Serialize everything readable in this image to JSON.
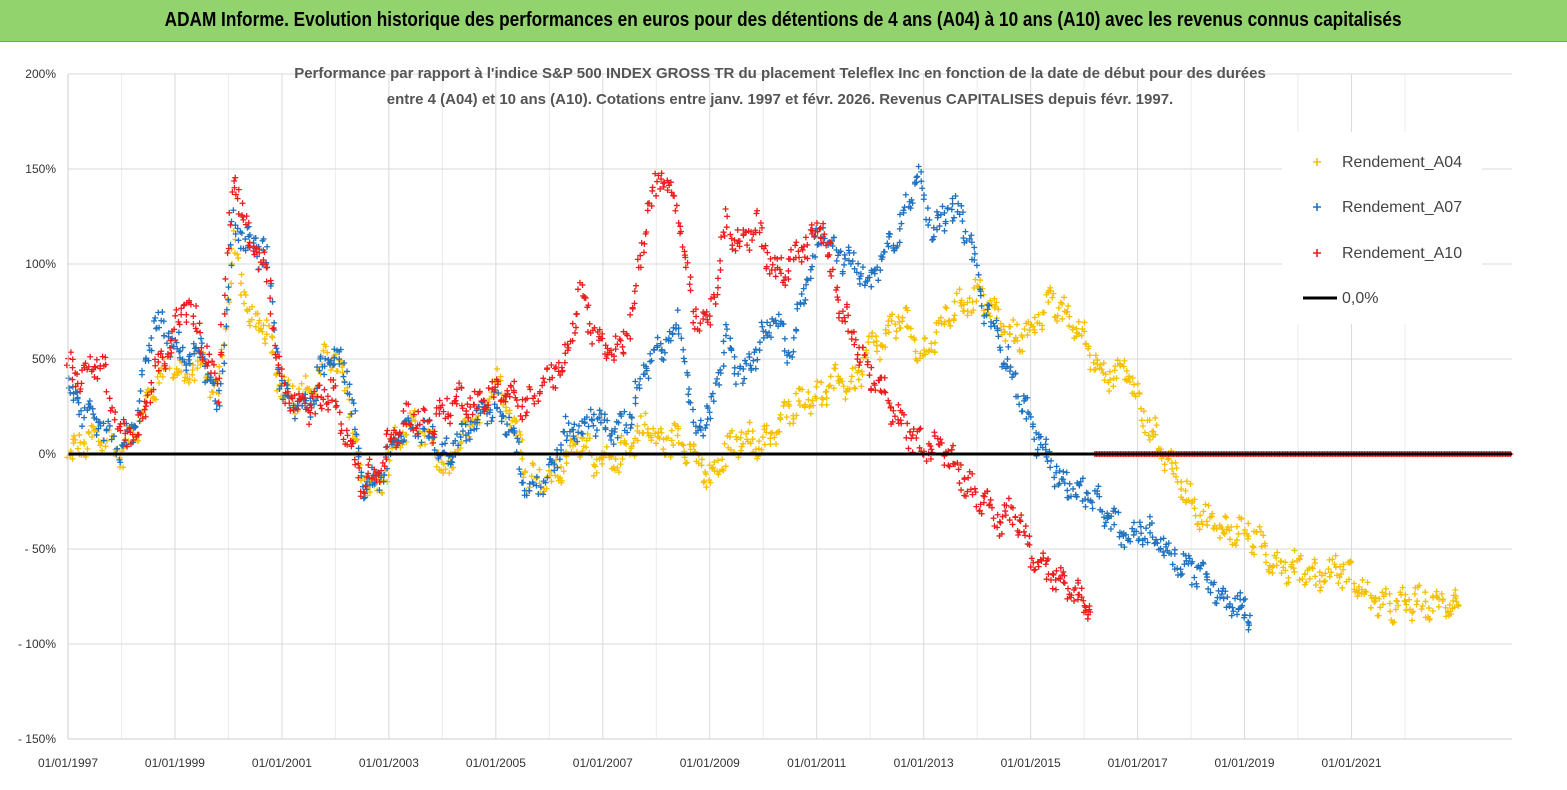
{
  "banner": {
    "title": "ADAM Informe. Evolution historique des performances en euros pour des détentions de 4 ans (A04) à 10 ans (A10) avec les revenus connus capitalisés"
  },
  "chart_data": {
    "type": "scatter",
    "title_lines": [
      "Performance par rapport à l'indice S&P 500 INDEX GROSS TR  du placement Teleflex Inc en fonction de la date de début pour des durées",
      "entre 4 (A04) et 10 ans (A10). Cotations entre janv. 1997 et févr. 2026. Revenus CAPITALISES depuis févr. 1997."
    ],
    "ylim": [
      -150,
      200
    ],
    "yticks": [
      200,
      150,
      100,
      50,
      0,
      -50,
      -100,
      -150
    ],
    "ytick_labels": [
      "200%",
      "150%",
      "100%",
      "50%",
      "0%",
      "- 50%",
      "- 100%",
      "- 150%"
    ],
    "xlim": [
      1997.0,
      2024.0
    ],
    "xticks": [
      1997,
      1999,
      2001,
      2003,
      2005,
      2007,
      2009,
      2011,
      2013,
      2015,
      2017,
      2019,
      2021
    ],
    "xtick_labels": [
      "01/01/1997",
      "01/01/1999",
      "01/01/2001",
      "01/01/2003",
      "01/01/2005",
      "01/01/2007",
      "01/01/2009",
      "01/01/2011",
      "01/01/2013",
      "01/01/2015",
      "01/01/2017",
      "01/01/2019",
      "01/01/2021"
    ],
    "legend": {
      "position": "right",
      "entries": [
        {
          "label": "Rendement_A04",
          "color": "#f5c000",
          "marker": "plus"
        },
        {
          "label": "Rendement_A07",
          "color": "#1f72c0",
          "marker": "plus"
        },
        {
          "label": "Rendement_A10",
          "color": "#ee1c1c",
          "marker": "plus"
        },
        {
          "label": "0,0%",
          "color": "#000000",
          "marker": "line"
        }
      ]
    },
    "series": [
      {
        "name": "Rendement_A04",
        "color": "#f5c000",
        "x": [
          1997.0,
          1997.3,
          1997.6,
          1998.0,
          1998.3,
          1998.6,
          1998.9,
          1999.2,
          1999.5,
          1999.8,
          2000.1,
          2000.4,
          2000.7,
          2001.0,
          2001.3,
          2001.6,
          2001.9,
          2002.2,
          2002.5,
          2002.8,
          2003.1,
          2003.4,
          2003.8,
          2004.1,
          2004.4,
          2004.7,
          2005.0,
          2005.3,
          2005.6,
          2006.0,
          2006.3,
          2006.6,
          2006.9,
          2007.2,
          2007.5,
          2007.8,
          2008.1,
          2008.4,
          2008.7,
          2009.0,
          2009.3,
          2009.6,
          2009.9,
          2010.2,
          2010.5,
          2010.8,
          2011.1,
          2011.4,
          2011.7,
          2012.0,
          2012.3,
          2012.6,
          2012.9,
          2013.2,
          2013.5,
          2013.8,
          2014.1,
          2014.4,
          2014.7,
          2015.0,
          2015.3,
          2015.6,
          2015.9,
          2016.2,
          2016.5,
          2016.8,
          2017.1,
          2017.4,
          2017.7,
          2018.0,
          2018.3,
          2018.6,
          2018.9,
          2019.2,
          2019.5,
          2019.8,
          2020.1,
          2020.4,
          2020.7,
          2021.0,
          2021.3,
          2021.6,
          2021.9,
          2022.2,
          2022.5,
          2022.8,
          2023.0
        ],
        "y": [
          0,
          5,
          10,
          0,
          15,
          35,
          50,
          40,
          48,
          30,
          110,
          70,
          65,
          35,
          30,
          35,
          55,
          35,
          -10,
          -20,
          5,
          15,
          5,
          -10,
          10,
          20,
          40,
          20,
          -10,
          -15,
          -5,
          10,
          -5,
          -5,
          5,
          15,
          5,
          10,
          0,
          -15,
          0,
          10,
          5,
          10,
          25,
          30,
          30,
          40,
          35,
          55,
          60,
          75,
          50,
          60,
          75,
          80,
          85,
          70,
          60,
          65,
          80,
          75,
          65,
          50,
          40,
          45,
          20,
          5,
          -10,
          -25,
          -35,
          -40,
          -40,
          -45,
          -55,
          -60,
          -60,
          -65,
          -60,
          -65,
          -75,
          -80,
          -80,
          -78,
          -80,
          -78,
          -80
        ]
      },
      {
        "name": "Rendement_A07",
        "color": "#1f72c0",
        "x": [
          1997.0,
          1997.3,
          1997.6,
          1998.0,
          1998.3,
          1998.6,
          1998.9,
          1999.2,
          1999.5,
          1999.8,
          2000.1,
          2000.4,
          2000.7,
          2001.0,
          2001.3,
          2001.6,
          2001.9,
          2002.2,
          2002.5,
          2002.8,
          2003.1,
          2003.4,
          2003.8,
          2004.1,
          2004.4,
          2004.7,
          2005.0,
          2005.3,
          2005.6,
          2006.0,
          2006.3,
          2006.6,
          2006.9,
          2007.2,
          2007.5,
          2007.8,
          2008.1,
          2008.4,
          2008.7,
          2009.0,
          2009.3,
          2009.6,
          2009.9,
          2010.2,
          2010.5,
          2010.8,
          2011.1,
          2011.4,
          2011.7,
          2012.0,
          2012.3,
          2012.6,
          2012.9,
          2013.2,
          2013.5,
          2013.8,
          2014.1,
          2014.4,
          2014.7,
          2015.0,
          2015.3,
          2015.6,
          2015.9,
          2016.2,
          2016.5,
          2016.8,
          2017.1,
          2017.4,
          2017.7,
          2018.0,
          2018.3,
          2018.6,
          2018.9,
          2019.1
        ],
        "y": [
          35,
          20,
          15,
          0,
          20,
          70,
          60,
          50,
          55,
          20,
          120,
          110,
          105,
          30,
          25,
          30,
          55,
          45,
          -15,
          -15,
          5,
          15,
          10,
          0,
          10,
          20,
          25,
          15,
          -20,
          -10,
          10,
          15,
          20,
          10,
          20,
          45,
          55,
          70,
          15,
          20,
          60,
          40,
          55,
          70,
          55,
          90,
          120,
          105,
          100,
          90,
          110,
          120,
          150,
          115,
          130,
          120,
          80,
          60,
          40,
          15,
          0,
          -15,
          -20,
          -25,
          -35,
          -45,
          -40,
          -45,
          -55,
          -60,
          -65,
          -75,
          -80,
          -85
        ]
      },
      {
        "name": "Rendement_A10",
        "color": "#ee1c1c",
        "x": [
          1997.0,
          1997.3,
          1997.6,
          1998.0,
          1998.3,
          1998.6,
          1998.9,
          1999.2,
          1999.5,
          1999.8,
          2000.1,
          2000.4,
          2000.7,
          2001.0,
          2001.3,
          2001.6,
          2001.9,
          2002.2,
          2002.5,
          2002.8,
          2003.1,
          2003.4,
          2003.8,
          2004.1,
          2004.4,
          2004.7,
          2005.0,
          2005.3,
          2005.6,
          2006.0,
          2006.3,
          2006.6,
          2006.9,
          2007.2,
          2007.5,
          2007.8,
          2008.1,
          2008.4,
          2008.7,
          2009.0,
          2009.3,
          2009.6,
          2009.9,
          2010.2,
          2010.5,
          2010.8,
          2011.1,
          2011.4,
          2011.7,
          2012.0,
          2012.3,
          2012.6,
          2012.9,
          2013.2,
          2013.5,
          2013.8,
          2014.1,
          2014.4,
          2014.7,
          2015.0,
          2015.3,
          2015.6,
          2015.9,
          2016.1
        ],
        "y": [
          45,
          40,
          50,
          10,
          10,
          40,
          55,
          80,
          60,
          35,
          150,
          110,
          100,
          35,
          25,
          25,
          35,
          10,
          -15,
          -10,
          10,
          20,
          15,
          25,
          30,
          25,
          35,
          30,
          25,
          40,
          50,
          85,
          60,
          50,
          65,
          120,
          150,
          130,
          75,
          70,
          120,
          110,
          120,
          95,
          100,
          110,
          120,
          80,
          60,
          40,
          30,
          15,
          5,
          5,
          0,
          -15,
          -25,
          -35,
          -30,
          -50,
          -60,
          -70,
          -75,
          -80
        ]
      },
      {
        "name": "Rendement_A10",
        "color": "#ee1c1c",
        "x": [
          2016.2,
          2024.0
        ],
        "y": [
          0,
          0
        ]
      }
    ]
  }
}
